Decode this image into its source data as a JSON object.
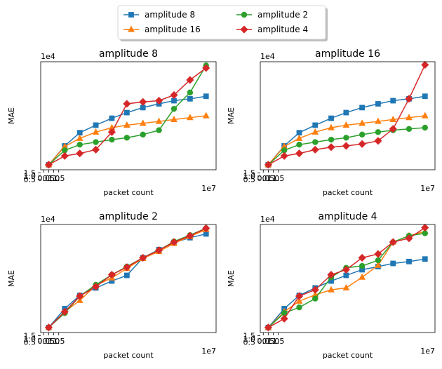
{
  "legend": {
    "entries": [
      {
        "label": "amplitude 8",
        "series": 0
      },
      {
        "label": "amplitude 16",
        "series": 1
      },
      {
        "label": "amplitude 2",
        "series": 2
      },
      {
        "label": "amplitude 4",
        "series": 3
      }
    ],
    "placement": "top-center",
    "columns": 2
  },
  "chart_data": [
    {
      "type": "line",
      "title": "amplitude 8",
      "xlabel": "packet count",
      "ylabel": "MAE",
      "x_offset_label": "1e7",
      "y_offset_label": "1e4",
      "xlim": [
        -0.3,
        17.2
      ],
      "ylim": [
        2.0,
        19.2
      ],
      "xticks": [
        0.0,
        0.5,
        1.0,
        1.5
      ],
      "xtick_labels": [
        "0.0",
        "0.5",
        "1.0",
        "1.5"
      ],
      "yticks": [
        0.5,
        1.0,
        1.5
      ],
      "ytick_labels": [
        "0.5",
        "1.0",
        "1.5"
      ],
      "x": [
        0.5,
        2.1,
        3.6,
        5.2,
        6.8,
        8.3,
        9.9,
        11.5,
        13.0,
        14.6,
        16.2
      ],
      "series": [
        {
          "name": "amplitude 8",
          "color": "#1f77b4",
          "marker": "square",
          "values": [
            2.8,
            5.8,
            7.9,
            9.1,
            10.2,
            11.1,
            11.9,
            12.5,
            13.0,
            13.3,
            13.7
          ]
        },
        {
          "name": "amplitude 16",
          "color": "#ff7f0e",
          "marker": "triangle",
          "values": [
            2.8,
            5.7,
            7.0,
            8.0,
            8.7,
            9.1,
            9.4,
            9.7,
            10.0,
            10.3,
            10.6
          ]
        },
        {
          "name": "amplitude 2",
          "color": "#2ca02c",
          "marker": "circle",
          "values": [
            2.8,
            5.1,
            6.0,
            6.4,
            6.8,
            7.1,
            7.6,
            8.3,
            11.7,
            14.3,
            18.6
          ]
        },
        {
          "name": "amplitude 4",
          "color": "#d62728",
          "marker": "diamond",
          "values": [
            2.8,
            4.2,
            4.6,
            5.2,
            8.0,
            12.5,
            12.8,
            13.0,
            13.9,
            16.3,
            18.2
          ]
        }
      ]
    },
    {
      "type": "line",
      "title": "amplitude 16",
      "xlabel": "packet count",
      "ylabel": "MAE",
      "x_offset_label": "1e7",
      "y_offset_label": "1e4",
      "xlim": [
        -0.3,
        17.2
      ],
      "ylim": [
        2.0,
        19.2
      ],
      "xticks": [
        0.0,
        0.5,
        1.0,
        1.5
      ],
      "xtick_labels": [
        "0.0",
        "0.5",
        "1.0",
        "1.5"
      ],
      "yticks": [
        0.5,
        1.0,
        1.5
      ],
      "ytick_labels": [
        "0.5",
        "1.0",
        "1.5"
      ],
      "x": [
        0.5,
        2.1,
        3.6,
        5.2,
        6.8,
        8.3,
        9.9,
        11.5,
        13.0,
        14.6,
        16.2
      ],
      "series": [
        {
          "name": "amplitude 8",
          "color": "#1f77b4",
          "marker": "square",
          "values": [
            2.8,
            5.8,
            7.9,
            9.1,
            10.2,
            11.1,
            11.9,
            12.5,
            13.0,
            13.3,
            13.7
          ]
        },
        {
          "name": "amplitude 16",
          "color": "#ff7f0e",
          "marker": "triangle",
          "values": [
            2.8,
            5.7,
            7.0,
            8.0,
            8.7,
            9.1,
            9.4,
            9.7,
            10.0,
            10.3,
            10.6
          ]
        },
        {
          "name": "amplitude 2",
          "color": "#2ca02c",
          "marker": "circle",
          "values": [
            2.8,
            5.1,
            6.0,
            6.4,
            6.8,
            7.1,
            7.6,
            8.0,
            8.3,
            8.5,
            8.7
          ]
        },
        {
          "name": "amplitude 4",
          "color": "#d62728",
          "marker": "diamond",
          "values": [
            2.8,
            4.2,
            4.6,
            5.2,
            5.6,
            5.8,
            6.1,
            6.6,
            8.5,
            13.3,
            18.7
          ]
        }
      ]
    },
    {
      "type": "line",
      "title": "amplitude 2",
      "xlabel": "packet count",
      "ylabel": "MAE",
      "x_offset_label": "1e7",
      "y_offset_label": "1e4",
      "xlim": [
        -0.3,
        17.2
      ],
      "ylim": [
        2.0,
        19.2
      ],
      "xticks": [
        0.0,
        0.5,
        1.0,
        1.5
      ],
      "xtick_labels": [
        "0.0",
        "0.5",
        "1.0",
        "1.5"
      ],
      "yticks": [
        0.5,
        1.0,
        1.5
      ],
      "ytick_labels": [
        "0.5",
        "1.0",
        "1.5"
      ],
      "x": [
        0.5,
        2.1,
        3.6,
        5.2,
        6.8,
        8.3,
        9.9,
        11.5,
        13.0,
        14.6,
        16.2
      ],
      "series": [
        {
          "name": "amplitude 8",
          "color": "#1f77b4",
          "marker": "square",
          "values": [
            2.8,
            5.8,
            7.9,
            9.1,
            10.2,
            11.1,
            13.9,
            15.2,
            16.3,
            17.1,
            17.7
          ]
        },
        {
          "name": "amplitude 16",
          "color": "#ff7f0e",
          "marker": "triangle",
          "values": [
            2.8,
            5.3,
            7.1,
            9.5,
            10.7,
            12.2,
            13.8,
            14.9,
            16.2,
            17.3,
            18.4
          ]
        },
        {
          "name": "amplitude 2",
          "color": "#2ca02c",
          "marker": "circle",
          "values": [
            2.8,
            5.1,
            7.8,
            9.6,
            11.2,
            12.5,
            13.9,
            15.1,
            16.5,
            17.5,
            18.6
          ]
        },
        {
          "name": "amplitude 4",
          "color": "#d62728",
          "marker": "diamond",
          "values": [
            2.8,
            5.3,
            7.8,
            9.3,
            11.2,
            12.4,
            13.9,
            15.1,
            16.4,
            17.4,
            18.6
          ]
        }
      ]
    },
    {
      "type": "line",
      "title": "amplitude 4",
      "xlabel": "packet count",
      "ylabel": "MAE",
      "x_offset_label": "1e7",
      "y_offset_label": "1e4",
      "xlim": [
        -0.3,
        17.2
      ],
      "ylim": [
        2.0,
        19.2
      ],
      "xticks": [
        0.0,
        0.5,
        1.0,
        1.5
      ],
      "xtick_labels": [
        "0.0",
        "0.5",
        "1.0",
        "1.5"
      ],
      "yticks": [
        0.5,
        1.0,
        1.5
      ],
      "ytick_labels": [
        "0.5",
        "1.0",
        "1.5"
      ],
      "x": [
        0.5,
        2.1,
        3.6,
        5.2,
        6.8,
        8.3,
        9.9,
        11.5,
        13.0,
        14.6,
        16.2
      ],
      "series": [
        {
          "name": "amplitude 8",
          "color": "#1f77b4",
          "marker": "square",
          "values": [
            2.8,
            5.8,
            7.9,
            9.1,
            10.2,
            11.1,
            12.0,
            12.5,
            13.0,
            13.3,
            13.7
          ]
        },
        {
          "name": "amplitude 16",
          "color": "#ff7f0e",
          "marker": "triangle",
          "values": [
            2.8,
            5.3,
            7.0,
            8.0,
            8.8,
            9.1,
            10.8,
            12.7,
            16.4,
            17.4,
            18.1
          ]
        },
        {
          "name": "amplitude 2",
          "color": "#2ca02c",
          "marker": "circle",
          "values": [
            2.8,
            5.1,
            6.0,
            7.4,
            10.8,
            12.3,
            12.6,
            13.5,
            16.4,
            17.4,
            17.8
          ]
        },
        {
          "name": "amplitude 4",
          "color": "#d62728",
          "marker": "diamond",
          "values": [
            2.8,
            4.2,
            7.8,
            8.8,
            11.2,
            12.0,
            13.9,
            14.5,
            16.4,
            17.0,
            18.7
          ]
        }
      ]
    }
  ]
}
